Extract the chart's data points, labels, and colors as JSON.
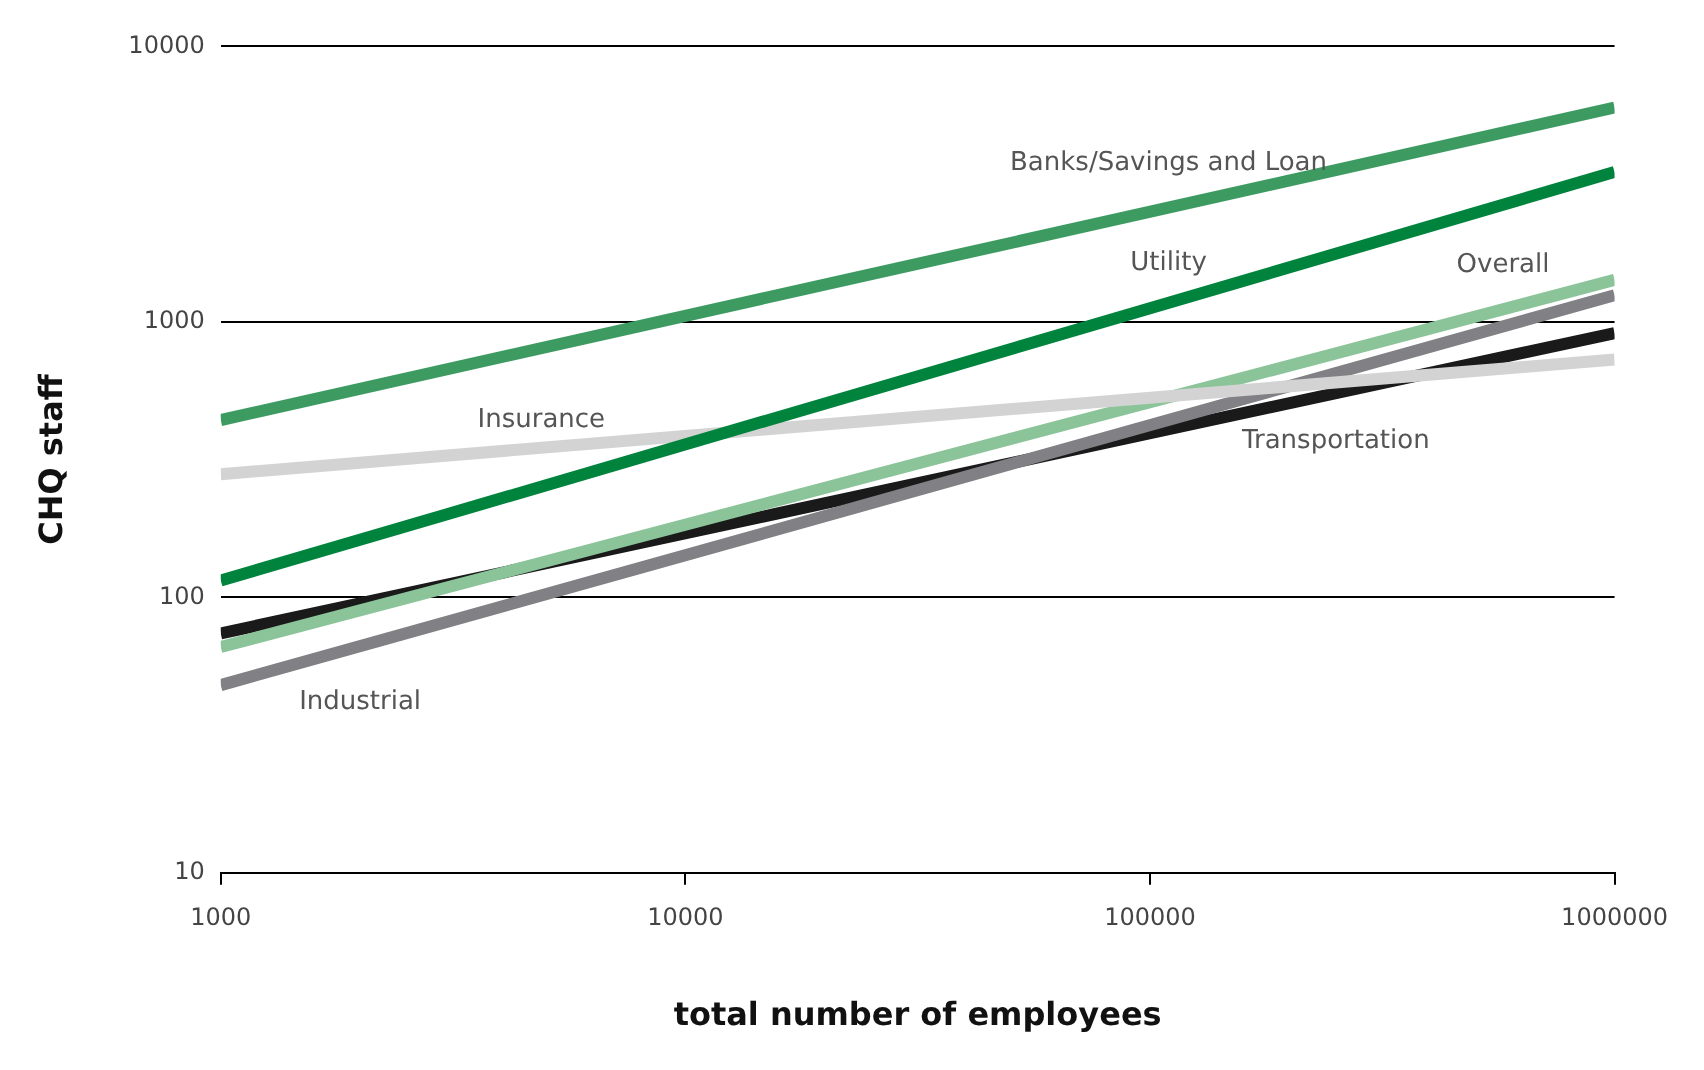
{
  "chart_data": {
    "type": "line",
    "xlabel": "total number of employees",
    "ylabel": "CHQ staff",
    "log": "xy",
    "grid": "y",
    "legend": false,
    "marker": "none",
    "x": [
      1000,
      1000000
    ],
    "xlim": [
      1000,
      1000000
    ],
    "xticks": [
      1000,
      10000,
      100000,
      1000000
    ],
    "ylim": [
      10,
      10000
    ],
    "yticks": [
      10,
      100,
      1000,
      10000
    ],
    "series": [
      {
        "name": "Banks/Savings and Loan",
        "color": "#3d9b62",
        "values": [
          440,
          6000
        ]
      },
      {
        "name": "Utility",
        "color": "#00843d",
        "values": [
          115,
          3500
        ]
      },
      {
        "name": "Insurance",
        "color": "#d3d3d3",
        "values": [
          280,
          730
        ]
      },
      {
        "name": "Overall",
        "color": "#8cc49a",
        "values": [
          66,
          1420
        ]
      },
      {
        "name": "Industrial",
        "color": "#808085",
        "values": [
          48,
          1250
        ]
      },
      {
        "name": "Transportation",
        "color": "#1a1a1a",
        "values": [
          74,
          910
        ]
      }
    ]
  }
}
